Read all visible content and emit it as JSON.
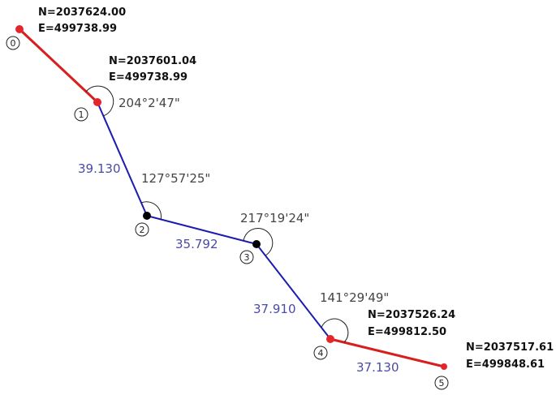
{
  "colors": {
    "control_line": "#d81e1e",
    "traverse_line": "#1c1cb0",
    "control_point": "#e3262b",
    "traverse_point": "#000000",
    "angle_text": "#444444",
    "distance_text": "#4a4aa8"
  },
  "points": [
    {
      "num": "0",
      "north": "N=2037624.00",
      "east": "E=499738.99",
      "type": "control"
    },
    {
      "num": "1",
      "north": "N=2037601.04",
      "east": "E=499738.99",
      "angle": "204°2'47\"",
      "type": "control"
    },
    {
      "num": "2",
      "angle": "127°57'25\"",
      "type": "traverse"
    },
    {
      "num": "3",
      "angle": "217°19'24\"",
      "type": "traverse"
    },
    {
      "num": "4",
      "north": "N=2037526.24",
      "east": "E=499812.50",
      "angle": "141°29'49\"",
      "type": "control"
    },
    {
      "num": "5",
      "north": "N=2037517.61",
      "east": "E=499848.61",
      "type": "control"
    }
  ],
  "segments": [
    {
      "from": "0",
      "to": "1",
      "kind": "control",
      "distance": ""
    },
    {
      "from": "1",
      "to": "2",
      "kind": "traverse",
      "distance": "39.130"
    },
    {
      "from": "2",
      "to": "3",
      "kind": "traverse",
      "distance": "35.792"
    },
    {
      "from": "3",
      "to": "4",
      "kind": "traverse",
      "distance": "37.910"
    },
    {
      "from": "4",
      "to": "5",
      "kind": "control",
      "distance": "37.130"
    }
  ]
}
